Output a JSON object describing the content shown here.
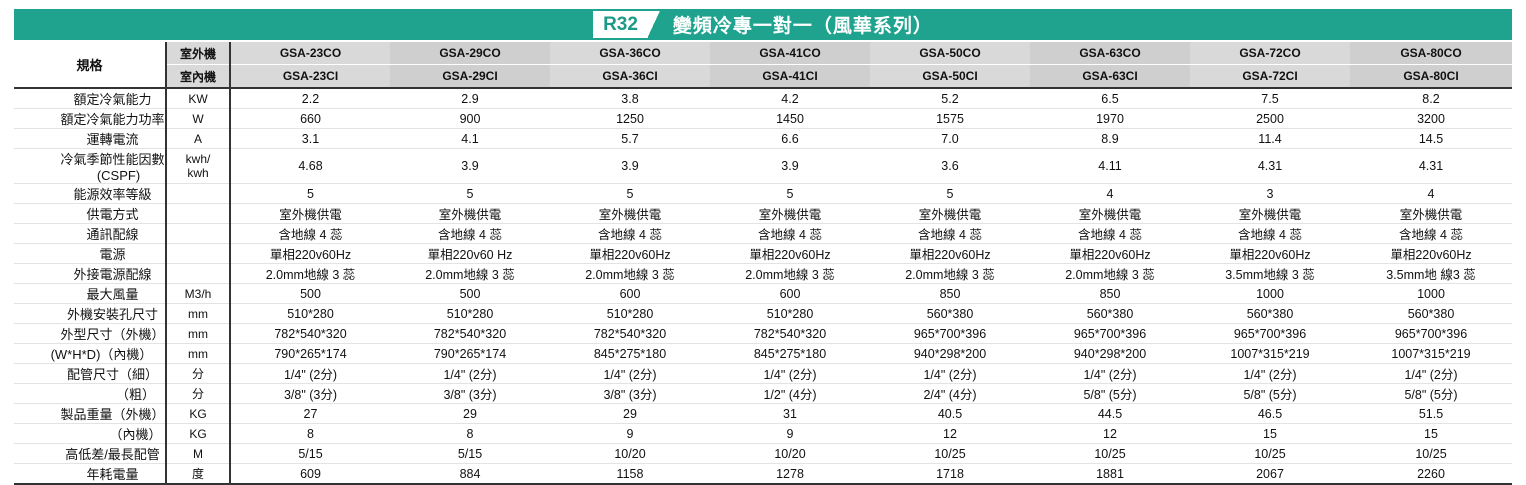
{
  "title": {
    "badge": "R32",
    "text": "變頻冷專一對一（風華系列）"
  },
  "header": {
    "spec_label": "規格",
    "outdoor_label": "室外機",
    "indoor_label": "室內機",
    "outdoor_models": [
      "GSA-23CO",
      "GSA-29CO",
      "GSA-36CO",
      "GSA-41CO",
      "GSA-50CO",
      "GSA-63CO",
      "GSA-72CO",
      "GSA-80CO"
    ],
    "indoor_models": [
      "GSA-23CI",
      "GSA-29CI",
      "GSA-36CI",
      "GSA-41CI",
      "GSA-50CI",
      "GSA-63CI",
      "GSA-72CI",
      "GSA-80CI"
    ]
  },
  "rows": [
    {
      "label": "額定冷氣能力",
      "unit": "KW",
      "values": [
        "2.2",
        "2.9",
        "3.8",
        "4.2",
        "5.2",
        "6.5",
        "7.5",
        "8.2"
      ]
    },
    {
      "label": "額定冷氣能力功率",
      "unit": "W",
      "values": [
        "660",
        "900",
        "1250",
        "1450",
        "1575",
        "1970",
        "2500",
        "3200"
      ]
    },
    {
      "label": "運轉電流",
      "unit": "A",
      "values": [
        "3.1",
        "4.1",
        "5.7",
        "6.6",
        "7.0",
        "8.9",
        "11.4",
        "14.5"
      ]
    },
    {
      "label": "冷氣季節性能因數",
      "label2": "(CSPF)",
      "unit": "kwh/",
      "unit2": "kwh",
      "values": [
        "4.68",
        "3.9",
        "3.9",
        "3.9",
        "3.6",
        "4.11",
        "4.31",
        "4.31"
      ]
    },
    {
      "label": "能源效率等級",
      "unit": "",
      "values": [
        "5",
        "5",
        "5",
        "5",
        "5",
        "4",
        "3",
        "4"
      ]
    },
    {
      "label": "供電方式",
      "unit": "",
      "values": [
        "室外機供電",
        "室外機供電",
        "室外機供電",
        "室外機供電",
        "室外機供電",
        "室外機供電",
        "室外機供電",
        "室外機供電"
      ]
    },
    {
      "label": "通訊配線",
      "unit": "",
      "values": [
        "含地線 4 蕊",
        "含地線 4 蕊",
        "含地線 4 蕊",
        "含地線 4 蕊",
        "含地線 4 蕊",
        "含地線 4 蕊",
        "含地線 4 蕊",
        "含地線 4 蕊"
      ]
    },
    {
      "label": "電源",
      "unit": "",
      "values": [
        "單相220v60Hz",
        "單相220v60 Hz",
        "單相220v60Hz",
        "單相220v60Hz",
        "單相220v60Hz",
        "單相220v60Hz",
        "單相220v60Hz",
        "單相220v60Hz"
      ]
    },
    {
      "label": "外接電源配線",
      "unit": "",
      "values": [
        "2.0mm地線 3 蕊",
        "2.0mm地線 3 蕊",
        "2.0mm地線 3 蕊",
        "2.0mm地線 3 蕊",
        "2.0mm地線 3 蕊",
        "2.0mm地線 3 蕊",
        "3.5mm地線 3 蕊",
        "3.5mm地 線3 蕊"
      ]
    },
    {
      "label": "最大風量",
      "unit": "M3/h",
      "values": [
        "500",
        "500",
        "600",
        "600",
        "850",
        "850",
        "1000",
        "1000"
      ]
    },
    {
      "label": "外機安裝孔尺寸",
      "unit": "mm",
      "values": [
        "510*280",
        "510*280",
        "510*280",
        "510*280",
        "560*380",
        "560*380",
        "560*380",
        "560*380"
      ]
    },
    {
      "label": "外型尺寸（外機）",
      "unit": "mm",
      "values": [
        "782*540*320",
        "782*540*320",
        "782*540*320",
        "782*540*320",
        "965*700*396",
        "965*700*396",
        "965*700*396",
        "965*700*396"
      ]
    },
    {
      "label": "(W*H*D)（內機）",
      "unit": "mm",
      "values": [
        "790*265*174",
        "790*265*174",
        "845*275*180",
        "845*275*180",
        "940*298*200",
        "940*298*200",
        "1007*315*219",
        "1007*315*219"
      ]
    },
    {
      "label": "配管尺寸（細）",
      "unit": "分",
      "values": [
        "1/4\" (2分)",
        "1/4\" (2分)",
        "1/4\" (2分)",
        "1/4\" (2分)",
        "1/4\" (2分)",
        "1/4\" (2分)",
        "1/4\" (2分)",
        "1/4\" (2分)"
      ]
    },
    {
      "label": "（粗）",
      "unit": "分",
      "values": [
        "3/8\" (3分)",
        "3/8\" (3分)",
        "3/8\" (3分)",
        "1/2\" (4分)",
        "2/4\" (4分)",
        "5/8\" (5分)",
        "5/8\" (5分)",
        "5/8\" (5分)"
      ]
    },
    {
      "label": "製品重量（外機）",
      "unit": "KG",
      "values": [
        "27",
        "29",
        "29",
        "31",
        "40.5",
        "44.5",
        "46.5",
        "51.5"
      ]
    },
    {
      "label": "（內機）",
      "unit": "KG",
      "values": [
        "8",
        "8",
        "9",
        "9",
        "12",
        "12",
        "15",
        "15"
      ]
    },
    {
      "label": "高低差/最長配管",
      "unit": "M",
      "values": [
        "5/15",
        "5/15",
        "10/20",
        "10/20",
        "10/25",
        "10/25",
        "10/25",
        "10/25"
      ]
    },
    {
      "label": "年耗電量",
      "unit": "度",
      "values": [
        "609",
        "884",
        "1158",
        "1278",
        "1718",
        "1881",
        "2067",
        "2260"
      ]
    }
  ]
}
